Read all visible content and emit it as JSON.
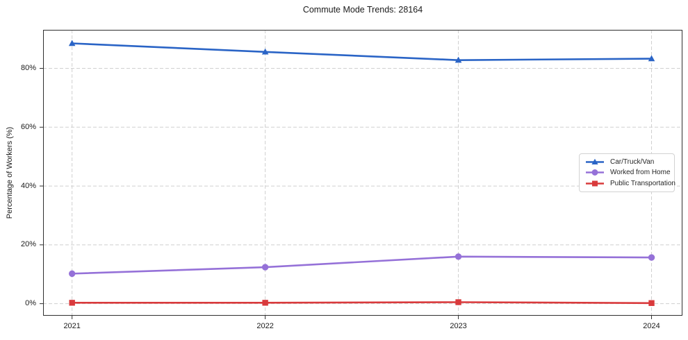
{
  "title": "Commute Mode Trends: 28164",
  "colors": {
    "car_truck_van": "#2a64c6",
    "worked_from_home": "#9571d8",
    "public_transportation": "#d93a3c",
    "gridline": "#cfcfcf",
    "spine": "#2e2e2e",
    "text": "#1a1a1a",
    "legend_border": "#d2d2d2"
  },
  "chart_data": {
    "type": "line",
    "title": "Commute Mode Trends: 28164",
    "xlabel": "",
    "ylabel": "Percentage of Workers (%)",
    "x": [
      2021,
      2022,
      2023,
      2024
    ],
    "x_tick_labels": [
      "2021",
      "2022",
      "2023",
      "2024"
    ],
    "y_ticks": [
      0,
      20,
      40,
      60,
      80
    ],
    "y_tick_labels": [
      "0%",
      "20%",
      "40%",
      "60%",
      "80%"
    ],
    "xlim": [
      2020.85,
      2024.16
    ],
    "ylim": [
      -4.1,
      93.1
    ],
    "grid": true,
    "grid_style": "dashed",
    "legend_position": "center-right",
    "series": [
      {
        "name": "Car/Truck/Van",
        "color": "#2a64c6",
        "marker": "triangle",
        "values": [
          88.5,
          85.6,
          82.8,
          83.3
        ]
      },
      {
        "name": "Worked from Home",
        "color": "#9571d8",
        "marker": "circle",
        "values": [
          10.2,
          12.4,
          16.0,
          15.7
        ]
      },
      {
        "name": "Public Transportation",
        "color": "#d93a3c",
        "marker": "square",
        "values": [
          0.3,
          0.3,
          0.5,
          0.2
        ]
      }
    ]
  }
}
